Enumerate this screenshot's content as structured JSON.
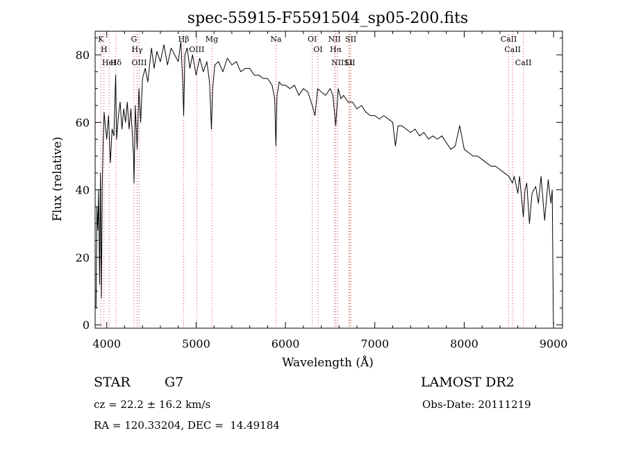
{
  "chart_data": {
    "type": "line",
    "title": "spec-55915-F5591504_sp05-200.fits",
    "xlabel": "Wavelength (Å)",
    "ylabel": "Flux (relative)",
    "xlim": [
      3870,
      9100
    ],
    "ylim": [
      -1,
      87
    ],
    "x_ticks": [
      4000,
      5000,
      6000,
      7000,
      8000,
      9000
    ],
    "y_ticks": [
      0,
      20,
      40,
      60,
      80
    ],
    "grid": false,
    "series": [
      {
        "points": [
          [
            3880,
            5
          ],
          [
            3890,
            35
          ],
          [
            3900,
            28
          ],
          [
            3910,
            40
          ],
          [
            3920,
            12
          ],
          [
            3930,
            45
          ],
          [
            3940,
            8
          ],
          [
            3950,
            42
          ],
          [
            3960,
            55
          ],
          [
            3970,
            63
          ],
          [
            3980,
            60
          ],
          [
            4000,
            55
          ],
          [
            4020,
            62
          ],
          [
            4040,
            48
          ],
          [
            4060,
            58
          ],
          [
            4080,
            56
          ],
          [
            4100,
            74
          ],
          [
            4110,
            55
          ],
          [
            4130,
            62
          ],
          [
            4150,
            66
          ],
          [
            4170,
            58
          ],
          [
            4190,
            64
          ],
          [
            4210,
            60
          ],
          [
            4230,
            66
          ],
          [
            4250,
            58
          ],
          [
            4270,
            64
          ],
          [
            4300,
            50
          ],
          [
            4305,
            42
          ],
          [
            4320,
            65
          ],
          [
            4340,
            52
          ],
          [
            4360,
            70
          ],
          [
            4380,
            60
          ],
          [
            4400,
            73
          ],
          [
            4430,
            76
          ],
          [
            4460,
            72
          ],
          [
            4500,
            82
          ],
          [
            4530,
            76
          ],
          [
            4560,
            81
          ],
          [
            4600,
            78
          ],
          [
            4640,
            83
          ],
          [
            4680,
            77
          ],
          [
            4720,
            82
          ],
          [
            4760,
            80
          ],
          [
            4800,
            78
          ],
          [
            4830,
            84
          ],
          [
            4850,
            72
          ],
          [
            4861,
            62
          ],
          [
            4875,
            80
          ],
          [
            4900,
            82
          ],
          [
            4930,
            76
          ],
          [
            4960,
            80
          ],
          [
            5000,
            74
          ],
          [
            5040,
            79
          ],
          [
            5080,
            75
          ],
          [
            5120,
            78
          ],
          [
            5150,
            72
          ],
          [
            5172,
            58
          ],
          [
            5185,
            70
          ],
          [
            5210,
            77
          ],
          [
            5250,
            78
          ],
          [
            5300,
            75
          ],
          [
            5350,
            79
          ],
          [
            5400,
            77
          ],
          [
            5450,
            78
          ],
          [
            5500,
            75
          ],
          [
            5550,
            76
          ],
          [
            5600,
            76
          ],
          [
            5650,
            74
          ],
          [
            5700,
            74
          ],
          [
            5750,
            73
          ],
          [
            5800,
            73
          ],
          [
            5850,
            71
          ],
          [
            5880,
            67
          ],
          [
            5893,
            53
          ],
          [
            5905,
            68
          ],
          [
            5930,
            72
          ],
          [
            5960,
            71
          ],
          [
            6000,
            71
          ],
          [
            6050,
            70
          ],
          [
            6100,
            71
          ],
          [
            6150,
            68
          ],
          [
            6200,
            70
          ],
          [
            6250,
            69
          ],
          [
            6300,
            65
          ],
          [
            6330,
            62
          ],
          [
            6360,
            70
          ],
          [
            6400,
            69
          ],
          [
            6450,
            68
          ],
          [
            6500,
            70
          ],
          [
            6530,
            68
          ],
          [
            6563,
            59
          ],
          [
            6590,
            70
          ],
          [
            6620,
            67
          ],
          [
            6650,
            68
          ],
          [
            6700,
            66
          ],
          [
            6750,
            66
          ],
          [
            6800,
            64
          ],
          [
            6850,
            65
          ],
          [
            6900,
            63
          ],
          [
            6950,
            62
          ],
          [
            7000,
            62
          ],
          [
            7050,
            61
          ],
          [
            7100,
            62
          ],
          [
            7150,
            61
          ],
          [
            7200,
            60
          ],
          [
            7230,
            53
          ],
          [
            7260,
            59
          ],
          [
            7300,
            59
          ],
          [
            7350,
            58
          ],
          [
            7400,
            57
          ],
          [
            7450,
            58
          ],
          [
            7500,
            56
          ],
          [
            7550,
            57
          ],
          [
            7600,
            55
          ],
          [
            7650,
            56
          ],
          [
            7700,
            55
          ],
          [
            7750,
            56
          ],
          [
            7800,
            54
          ],
          [
            7850,
            52
          ],
          [
            7900,
            53
          ],
          [
            7950,
            59
          ],
          [
            8000,
            52
          ],
          [
            8050,
            51
          ],
          [
            8100,
            50
          ],
          [
            8150,
            50
          ],
          [
            8200,
            49
          ],
          [
            8250,
            48
          ],
          [
            8300,
            47
          ],
          [
            8350,
            47
          ],
          [
            8400,
            46
          ],
          [
            8450,
            45
          ],
          [
            8500,
            44
          ],
          [
            8540,
            42
          ],
          [
            8560,
            44
          ],
          [
            8600,
            39
          ],
          [
            8620,
            44
          ],
          [
            8662,
            32
          ],
          [
            8680,
            40
          ],
          [
            8700,
            42
          ],
          [
            8730,
            30
          ],
          [
            8760,
            39
          ],
          [
            8800,
            41
          ],
          [
            8830,
            36
          ],
          [
            8860,
            44
          ],
          [
            8900,
            31
          ],
          [
            8940,
            43
          ],
          [
            8970,
            36
          ],
          [
            8985,
            40
          ],
          [
            8992,
            18
          ],
          [
            8998,
            0
          ]
        ]
      }
    ],
    "spectral_lines": [
      {
        "x": 3934,
        "label": "K"
      },
      {
        "x": 3969,
        "label": "H"
      },
      {
        "x": 4026,
        "label": "HeI"
      },
      {
        "x": 4102,
        "label": "Hδ"
      },
      {
        "x": 4304,
        "label": "G"
      },
      {
        "x": 4340,
        "label": "Hγ"
      },
      {
        "x": 4363,
        "label": "OIII"
      },
      {
        "x": 4861,
        "label": "Hβ"
      },
      {
        "x": 5007,
        "label": "OIII"
      },
      {
        "x": 5175,
        "label": "Mg"
      },
      {
        "x": 5893,
        "label": "Na"
      },
      {
        "x": 6300,
        "label": "OI"
      },
      {
        "x": 6364,
        "label": "OI"
      },
      {
        "x": 6548,
        "label": "NII"
      },
      {
        "x": 6563,
        "label": "Hα"
      },
      {
        "x": 6584,
        "label": "NII"
      },
      {
        "x": 6708,
        "label": "Li"
      },
      {
        "x": 6717,
        "label": "SII"
      },
      {
        "x": 6731,
        "label": "SII"
      },
      {
        "x": 8498,
        "label": "CaII"
      },
      {
        "x": 8542,
        "label": "CaII"
      },
      {
        "x": 8662,
        "label": "CaII"
      }
    ]
  },
  "info": {
    "object_class": "STAR",
    "subclass": "G7",
    "survey": "LAMOST DR2",
    "cz": "cz = 22.2 ± 16.2 km/s",
    "obs_date": "Obs-Date: 20111219",
    "coords": "RA = 120.33204, DEC =  14.49184"
  }
}
